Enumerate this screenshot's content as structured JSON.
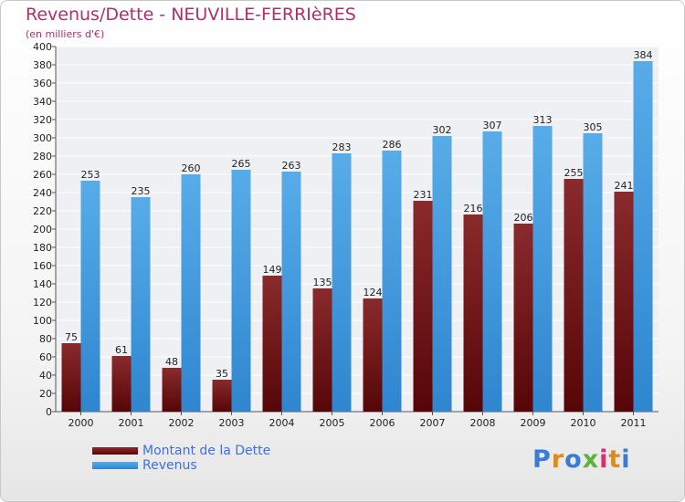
{
  "chart_data": {
    "type": "bar",
    "title": "Revenus/Dette - NEUVILLE-FERRIèRES",
    "subtitle": "(en milliers d'€)",
    "categories": [
      "2000",
      "2001",
      "2002",
      "2003",
      "2004",
      "2005",
      "2006",
      "2007",
      "2008",
      "2009",
      "2010",
      "2011"
    ],
    "series": [
      {
        "name": "Montant de la Dette",
        "color": "#7a1f22",
        "values": [
          75,
          61,
          48,
          35,
          149,
          135,
          124,
          231,
          216,
          206,
          255,
          241
        ]
      },
      {
        "name": "Revenus",
        "color": "#4a9fe3",
        "values": [
          253,
          235,
          260,
          265,
          263,
          283,
          286,
          302,
          307,
          313,
          305,
          384
        ]
      }
    ],
    "ylim": [
      0,
      400
    ],
    "ytick_step": 20,
    "grid": true,
    "legend_position": "bottom-left"
  },
  "logo": {
    "text": "Proxiti",
    "letters": [
      "P",
      "r",
      "o",
      "x",
      "i",
      "t",
      "i"
    ],
    "colors": [
      "#3a7bd5",
      "#e08a1e",
      "#3a7bd5",
      "#5db33a",
      "#d6336c",
      "#e08a1e",
      "#3a7bd5"
    ]
  }
}
